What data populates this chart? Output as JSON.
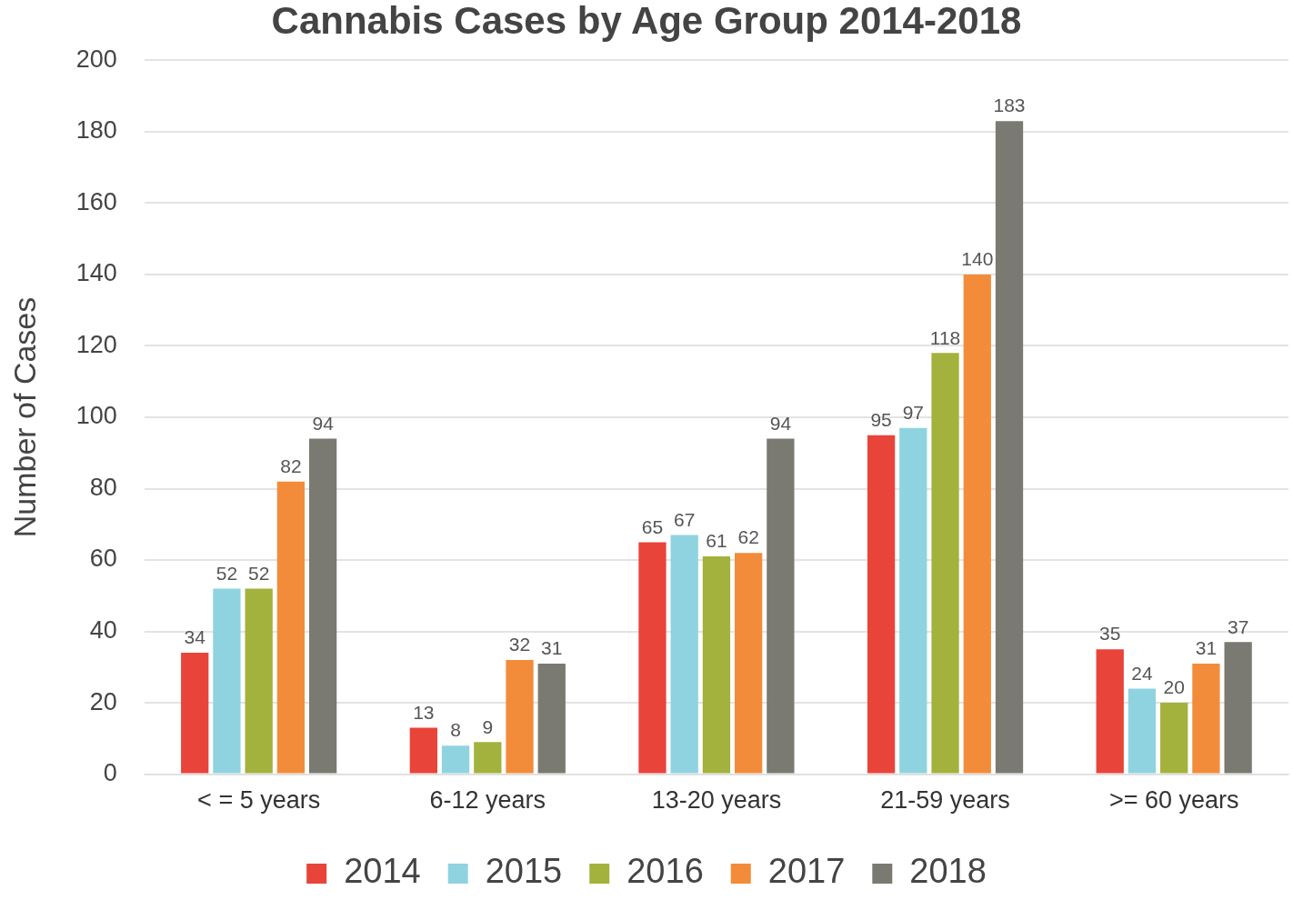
{
  "chart_data": {
    "type": "bar",
    "title": "Cannabis Cases by Age Group 2014-2018",
    "ylabel": "Number of Cases",
    "categories": [
      "< = 5 years",
      "6-12 years",
      "13-20 years",
      "21-59 years",
      ">= 60 years"
    ],
    "series": [
      {
        "name": "2014",
        "color": "#e8443a",
        "values": [
          34,
          13,
          65,
          95,
          35
        ]
      },
      {
        "name": "2015",
        "color": "#8fd3e0",
        "values": [
          52,
          8,
          67,
          97,
          24
        ]
      },
      {
        "name": "2016",
        "color": "#a3b23c",
        "values": [
          52,
          9,
          61,
          118,
          20
        ]
      },
      {
        "name": "2017",
        "color": "#f28c3a",
        "values": [
          82,
          32,
          62,
          140,
          31
        ]
      },
      {
        "name": "2018",
        "color": "#7a7a72",
        "values": [
          94,
          31,
          94,
          183,
          37
        ]
      }
    ],
    "ylim": [
      0,
      200
    ],
    "yticks": [
      0,
      20,
      40,
      60,
      80,
      100,
      120,
      140,
      160,
      180,
      200
    ],
    "grid": "y",
    "legend": "bottom",
    "data_labels": true
  }
}
